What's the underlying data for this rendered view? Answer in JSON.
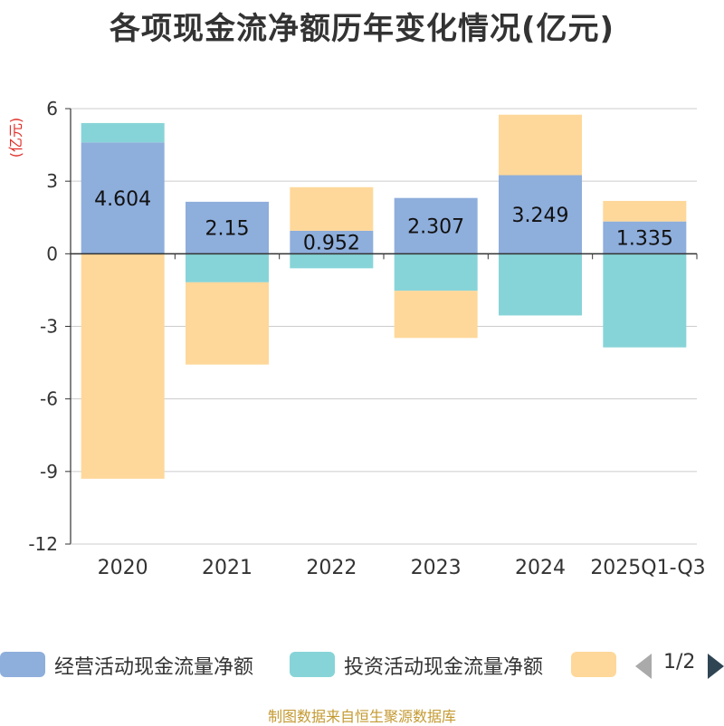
{
  "chart_data": {
    "type": "bar",
    "stacked": true,
    "title": "各项现金流净额历年变化情况(亿元)",
    "ylabel": "(亿元)",
    "ylim": [
      -12,
      6
    ],
    "yticks": [
      6,
      3,
      0,
      -3,
      -6,
      -9,
      -12
    ],
    "categories": [
      "2020",
      "2021",
      "2022",
      "2023",
      "2024",
      "2025Q1-Q3"
    ],
    "series": [
      {
        "name": "经营活动现金流量净额",
        "color": "#8eaedc",
        "values": [
          4.604,
          2.15,
          0.952,
          2.307,
          3.249,
          1.335
        ],
        "labels": [
          "4.604",
          "2.15",
          "0.952",
          "2.307",
          "3.249",
          "1.335"
        ]
      },
      {
        "name": "投资活动现金流量净额",
        "color": "#87d4d8",
        "values": [
          0.8,
          -1.18,
          -0.6,
          -1.53,
          -2.55,
          -3.87
        ]
      },
      {
        "name": "",
        "color": "#fed89a",
        "values": [
          -9.3,
          -3.4,
          1.8,
          -1.95,
          2.5,
          0.85
        ]
      }
    ]
  },
  "legend": {
    "items": [
      "经营活动现金流量净额",
      "投资活动现金流量净额",
      ""
    ],
    "page": "1/2"
  },
  "footer": "制图数据来自恒生聚源数据库",
  "colors": {
    "title": "#333333",
    "ylabel": "#e0302a",
    "footer": "#c49a32",
    "axis": "#333333",
    "grid": "#cccccc",
    "pager_prev": "#aaaaaa",
    "pager_next": "#2f4554"
  }
}
